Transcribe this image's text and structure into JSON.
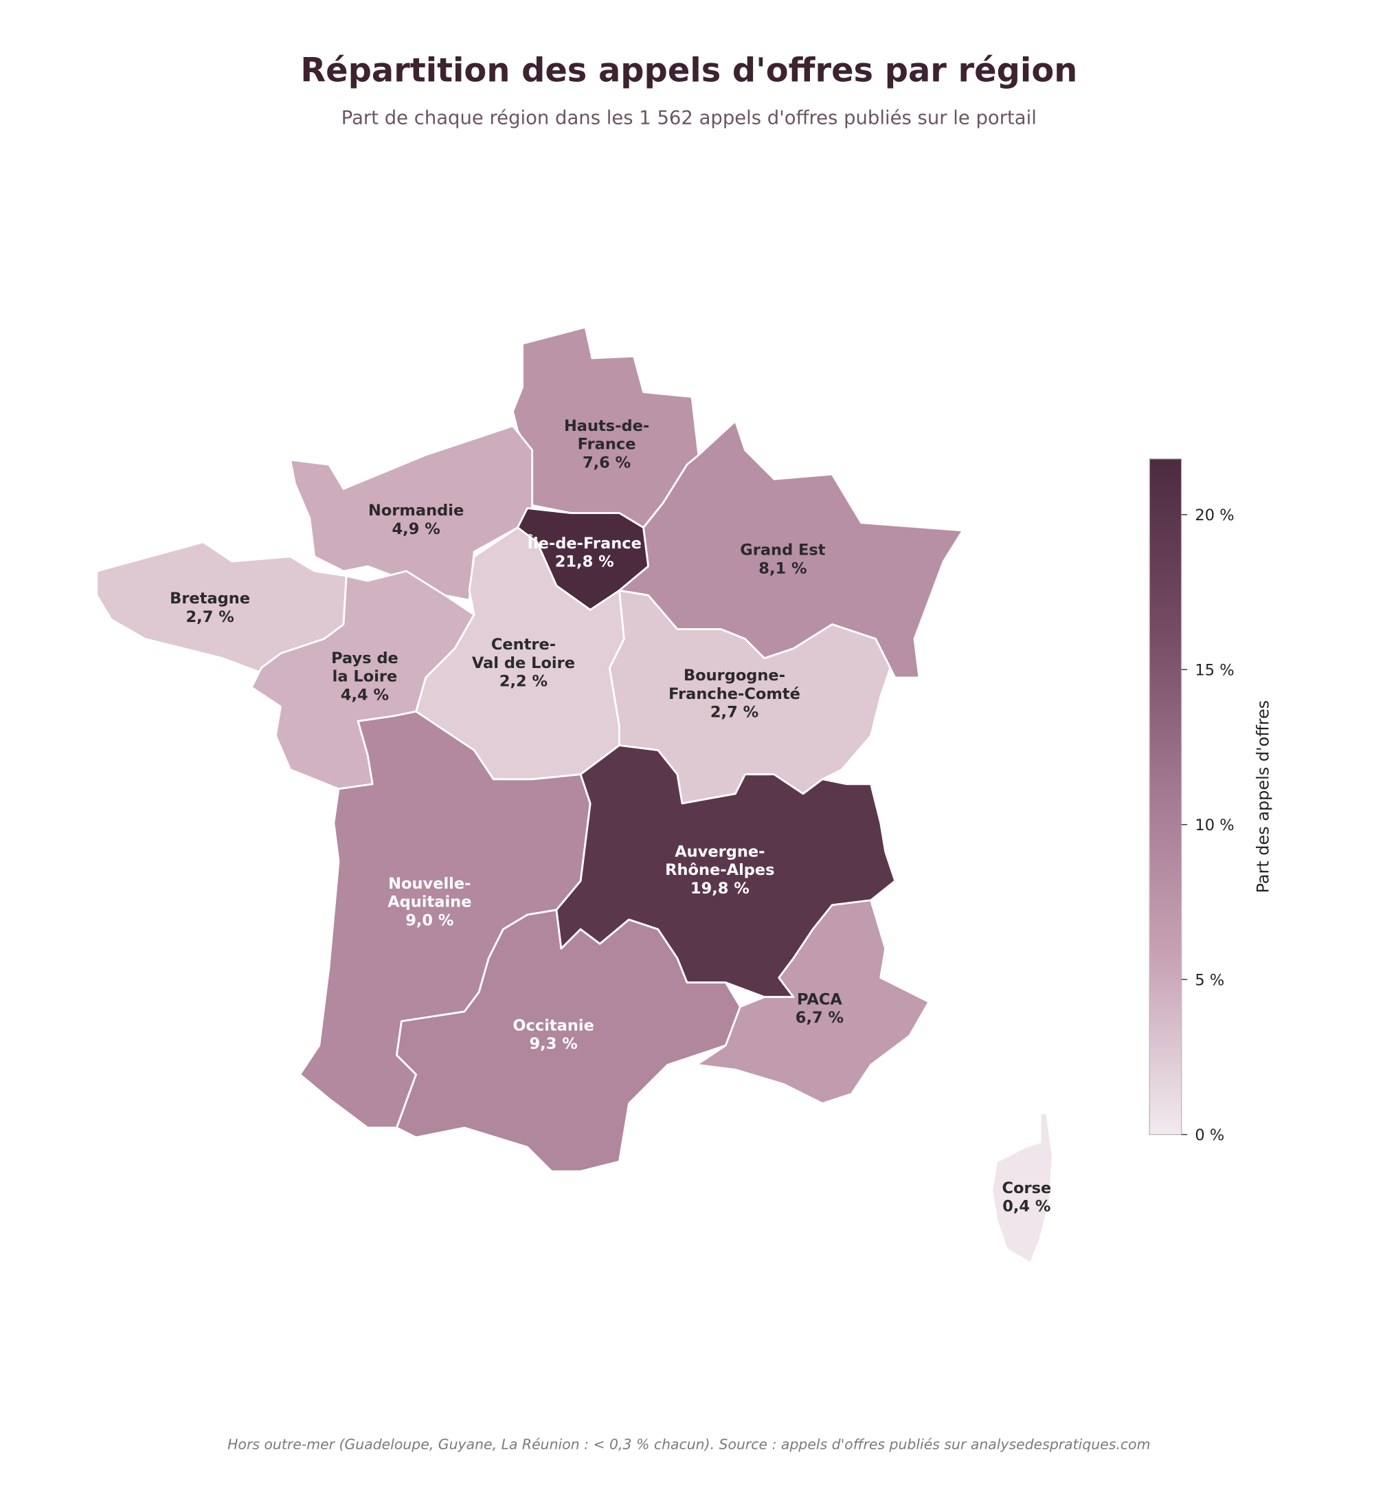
{
  "chart_data": {
    "type": "choropleth",
    "title": "Répartition des appels d'offres par région",
    "subtitle": "Part de chaque région dans les 1 562 appels d'offres publiés sur le portail",
    "footnote": "Hors outre-mer (Guadeloupe, Guyane, La Réunion : < 0,3 % chacun).  Source : appels d'offres publiés sur analysedespratiques.com",
    "colorbar_label": "Part des appels d'offres",
    "clim": [
      0,
      21.8
    ],
    "cticks": [
      {
        "value": 0,
        "label": "0 %"
      },
      {
        "value": 5,
        "label": "5 %"
      },
      {
        "value": 10,
        "label": "10 %"
      },
      {
        "value": 15,
        "label": "15 %"
      },
      {
        "value": 20,
        "label": "20 %"
      }
    ],
    "colormap": [
      "#f2eaee",
      "#c9a5b6",
      "#a57a93",
      "#744b63",
      "#4c2b3f"
    ],
    "regions": [
      {
        "name": [
          "Hauts-de-",
          "France"
        ],
        "values": 7.6,
        "value_label": "7,6 %"
      },
      {
        "name": [
          "Normandie"
        ],
        "values": 4.9,
        "value_label": "4,9 %"
      },
      {
        "name": [
          "Île-de-France"
        ],
        "values": 21.8,
        "value_label": "21,8 %"
      },
      {
        "name": [
          "Grand Est"
        ],
        "values": 8.1,
        "value_label": "8,1 %"
      },
      {
        "name": [
          "Bretagne"
        ],
        "values": 2.7,
        "value_label": "2,7 %"
      },
      {
        "name": [
          "Pays de",
          "la Loire"
        ],
        "values": 4.4,
        "value_label": "4,4 %"
      },
      {
        "name": [
          "Centre-",
          "Val de Loire"
        ],
        "values": 2.2,
        "value_label": "2,2 %"
      },
      {
        "name": [
          "Bourgogne-",
          "Franche-Comté"
        ],
        "values": 2.7,
        "value_label": "2,7 %"
      },
      {
        "name": [
          "Auvergne-",
          "Rhône-Alpes"
        ],
        "values": 19.8,
        "value_label": "19,8 %"
      },
      {
        "name": [
          "Nouvelle-",
          "Aquitaine"
        ],
        "values": 9.0,
        "value_label": "9,0 %"
      },
      {
        "name": [
          "Occitanie"
        ],
        "values": 9.3,
        "value_label": "9,3 %"
      },
      {
        "name": [
          "PACA"
        ],
        "values": 6.7,
        "value_label": "6,7 %"
      },
      {
        "name": [
          "Corse"
        ],
        "values": 0.4,
        "value_label": "0,4 %"
      }
    ]
  }
}
